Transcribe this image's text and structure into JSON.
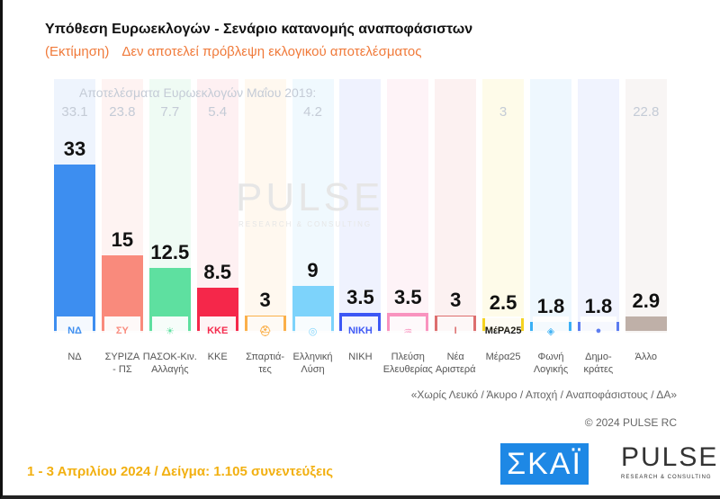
{
  "header": {
    "title": "Υπόθεση Ευρωεκλογών - Σενάριο κατανομής αναποφάσιστων",
    "subtitle_a": "(Εκτίμηση)",
    "subtitle_b": "Δεν αποτελεί πρόβλεψη εκλογικού αποτελέσματος"
  },
  "chart_data": {
    "type": "bar",
    "title": "Υπόθεση Ευρωεκλογών - Σενάριο κατανομής αναποφάσιστων",
    "ylim": [
      0,
      35
    ],
    "grid": false,
    "categories": [
      "ΝΔ",
      "ΣΥΡΙΖΑ\n- ΠΣ",
      "ΠΑΣΟΚ-Κιν.\nΑλλαγής",
      "ΚΚΕ",
      "Σπαρτιά-\nτες",
      "Ελληνική\nΛύση",
      "ΝΙΚΗ",
      "Πλεύση\nΕλευθερίας",
      "Νέα\nΑριστερά",
      "Μέρα25",
      "Φωνή\nΛογικής",
      "Δημο-\nκράτες",
      "Άλλο"
    ],
    "values": [
      33,
      15,
      12.5,
      8.5,
      3,
      9,
      3.5,
      3.5,
      3,
      2.5,
      1.8,
      1.8,
      2.9
    ],
    "value_labels": [
      "33",
      "15",
      "12.5",
      "8.5",
      "3",
      "9",
      "3.5",
      "3.5",
      "3",
      "2.5",
      "1.8",
      "1.8",
      "2.9"
    ],
    "previous_header": "Αποτελέσματα Ευρωεκλογών Μαΐου 2019:",
    "previous": [
      "33.1",
      "23.8",
      "7.7",
      "5.4",
      "",
      "4.2",
      "",
      "",
      "",
      "3",
      "",
      "",
      "22.8"
    ],
    "colors": [
      "#3d8ef0",
      "#f98a7c",
      "#5ee0a0",
      "#f5274a",
      "#fbb04a",
      "#7dd3fb",
      "#3c57f5",
      "#f993bf",
      "#dd6f6f",
      "#f5d320",
      "#3ab0f5",
      "#5b7bf0",
      "#bfb0a8"
    ],
    "bg_colors": [
      "#eef4fd",
      "#fef3f2",
      "#effbf4",
      "#fef0f2",
      "#fff8ef",
      "#f0f9fe",
      "#eff2fe",
      "#fef3f7",
      "#fcf1f1",
      "#fefbe9",
      "#eef7fe",
      "#f0f3fe",
      "#f8f5f4"
    ],
    "logos": [
      "ΝΔ",
      "ΣΥ",
      "☀",
      "ΚΚΕ",
      "⛑",
      "◎",
      "ΝΙΚΗ",
      "♒",
      "Ι",
      "ΜέΡΑ25",
      "◈",
      "●",
      ""
    ]
  },
  "watermark": {
    "text": "PULSE",
    "sub": "RESEARCH & CONSULTING"
  },
  "note": "«Χωρίς Λευκό / Άκυρο / Αποχή / Αναποφάσιστους / ΔΑ»",
  "copyright": "© 2024 PULSE RC",
  "footer": "1 - 3  Απριλίου 2024  /  Δείγμα:  1.105 συνεντεύξεις",
  "logos": {
    "skai": "ΣΚΑΪ",
    "pulse": "PULSE",
    "pulse_sub": "RESEARCH & CONSULTING"
  }
}
